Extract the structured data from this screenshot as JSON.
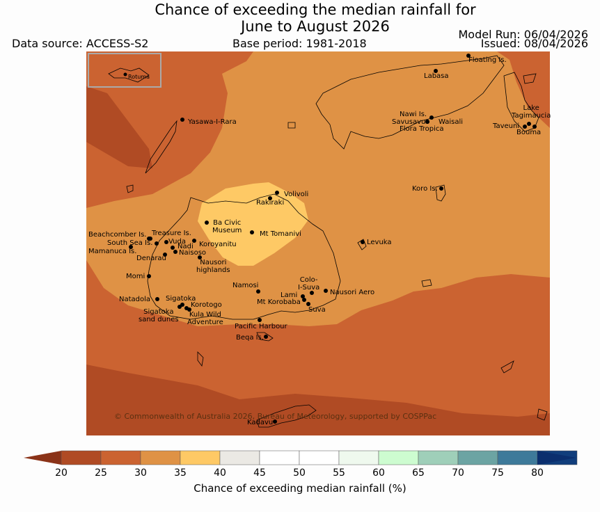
{
  "header": {
    "title_line1": "Chance of exceeding the median rainfall for",
    "title_line2": "June to August 2026",
    "data_source": "Data source: ACCESS-S2",
    "base_period": "Base period: 1981-2018",
    "model_run": "Model Run: 06/04/2026",
    "issued": "Issued: 08/04/2026"
  },
  "map": {
    "inset_label": "Rotuma",
    "copyright": "© Commonwealth of Australia 2026, Bureau of Meteorology, supported by COSPPac",
    "places": [
      {
        "id": "floating-is",
        "name": "Floating Is."
      },
      {
        "id": "labasa",
        "name": "Labasa"
      },
      {
        "id": "yasawa",
        "name": "Yasawa-I-Rara"
      },
      {
        "id": "nawi",
        "name": "Nawi Is."
      },
      {
        "id": "savusavu",
        "name": "Savusavu"
      },
      {
        "id": "waisali",
        "name": "Waisali"
      },
      {
        "id": "flora",
        "name": "Flora Tropica"
      },
      {
        "id": "lake-tag",
        "name": "Lake\nTagimaucia"
      },
      {
        "id": "taveuni",
        "name": "Taveuni"
      },
      {
        "id": "bouma",
        "name": "Bouma"
      },
      {
        "id": "koro",
        "name": "Koro Is."
      },
      {
        "id": "volivoli",
        "name": "Volivoli"
      },
      {
        "id": "rakiraki",
        "name": "Rakiraki"
      },
      {
        "id": "ba-civic",
        "name": "Ba Civic\nMuseum"
      },
      {
        "id": "tomanivi",
        "name": "Mt Tomanivi"
      },
      {
        "id": "levuka",
        "name": "Levuka"
      },
      {
        "id": "beachcomber",
        "name": "Beachcomber Is."
      },
      {
        "id": "treasure",
        "name": "Treasure Is."
      },
      {
        "id": "south-sea",
        "name": "South Sea Is."
      },
      {
        "id": "vuda",
        "name": "Vuda"
      },
      {
        "id": "mamanuca",
        "name": "Mamanuca Is."
      },
      {
        "id": "nadi",
        "name": "Nadi"
      },
      {
        "id": "naisoso",
        "name": "Naisoso"
      },
      {
        "id": "koroyanitu",
        "name": "Koroyanitu"
      },
      {
        "id": "denarau",
        "name": "Denarau"
      },
      {
        "id": "nausori-hl",
        "name": "Nausori\nhighlands"
      },
      {
        "id": "momi",
        "name": "Momi"
      },
      {
        "id": "namosi",
        "name": "Namosi"
      },
      {
        "id": "colo-suva",
        "name": "Colo-\nI-Suva"
      },
      {
        "id": "lami",
        "name": "Lami"
      },
      {
        "id": "nausori-aero",
        "name": "Nausori Aero"
      },
      {
        "id": "korobaba",
        "name": "Mt Korobaba"
      },
      {
        "id": "suva",
        "name": "Suva"
      },
      {
        "id": "natadola",
        "name": "Natadola"
      },
      {
        "id": "sigatoka",
        "name": "Sigatoka"
      },
      {
        "id": "korotogo",
        "name": "Korotogo"
      },
      {
        "id": "sigatoka-dunes",
        "name": "Sigatoka\nsand dunes"
      },
      {
        "id": "kula",
        "name": "Kula Wild\nAdventure"
      },
      {
        "id": "pacific-harbour",
        "name": "Pacific Harbour"
      },
      {
        "id": "beqa",
        "name": "Beqa Is."
      },
      {
        "id": "kadavu",
        "name": "Kadavu"
      }
    ]
  },
  "legend": {
    "label": "Chance of exceeding median rainfall (%)",
    "ticks": [
      "20",
      "25",
      "30",
      "35",
      "40",
      "45",
      "50",
      "55",
      "60",
      "65",
      "70",
      "75",
      "80"
    ],
    "colors": [
      "#b04b24",
      "#cb6331",
      "#df9245",
      "#fec965",
      "#ebe9e4",
      "#ffffff",
      "#ffffff",
      "#eff9ee",
      "#cdfcd0",
      "#9fcfb9",
      "#6ca4a3",
      "#3e7a9a",
      "#113e7c"
    ],
    "low_color": "#8b3318",
    "high_color": "#0b2f6e"
  }
}
